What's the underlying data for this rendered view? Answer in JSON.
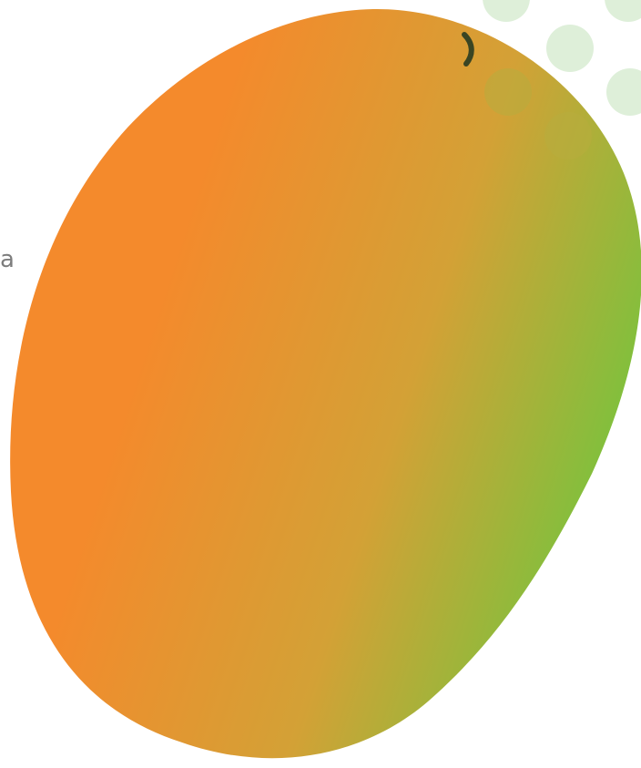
{
  "text_fragment": "a",
  "blob": {
    "gradient_start": "#f48a2c",
    "gradient_mid": "#d3a136",
    "gradient_end": "#7ec13d"
  },
  "dots": {
    "color": "#deefd9",
    "overlap_color": "#b8ad3e",
    "count": 7
  },
  "curve_mark": {
    "color": "#3a4523"
  }
}
